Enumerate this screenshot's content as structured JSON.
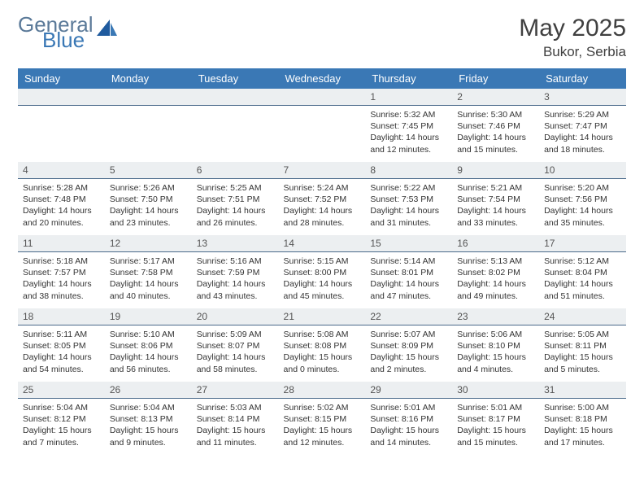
{
  "logo": {
    "general": "General",
    "blue": "Blue"
  },
  "title": {
    "month": "May 2025",
    "location": "Bukor, Serbia"
  },
  "colors": {
    "header_bg": "#3a78b5",
    "header_fg": "#ffffff",
    "daynum_bg": "#eceff1",
    "daynum_border": "#4a6a8a",
    "text": "#333333",
    "logo_general": "#5b7a99",
    "logo_blue": "#3a78b5"
  },
  "weekdays": [
    "Sunday",
    "Monday",
    "Tuesday",
    "Wednesday",
    "Thursday",
    "Friday",
    "Saturday"
  ],
  "weeks": [
    [
      null,
      null,
      null,
      null,
      {
        "n": "1",
        "sr": "5:32 AM",
        "ss": "7:45 PM",
        "dh": "14",
        "dm": "12"
      },
      {
        "n": "2",
        "sr": "5:30 AM",
        "ss": "7:46 PM",
        "dh": "14",
        "dm": "15"
      },
      {
        "n": "3",
        "sr": "5:29 AM",
        "ss": "7:47 PM",
        "dh": "14",
        "dm": "18"
      }
    ],
    [
      {
        "n": "4",
        "sr": "5:28 AM",
        "ss": "7:48 PM",
        "dh": "14",
        "dm": "20"
      },
      {
        "n": "5",
        "sr": "5:26 AM",
        "ss": "7:50 PM",
        "dh": "14",
        "dm": "23"
      },
      {
        "n": "6",
        "sr": "5:25 AM",
        "ss": "7:51 PM",
        "dh": "14",
        "dm": "26"
      },
      {
        "n": "7",
        "sr": "5:24 AM",
        "ss": "7:52 PM",
        "dh": "14",
        "dm": "28"
      },
      {
        "n": "8",
        "sr": "5:22 AM",
        "ss": "7:53 PM",
        "dh": "14",
        "dm": "31"
      },
      {
        "n": "9",
        "sr": "5:21 AM",
        "ss": "7:54 PM",
        "dh": "14",
        "dm": "33"
      },
      {
        "n": "10",
        "sr": "5:20 AM",
        "ss": "7:56 PM",
        "dh": "14",
        "dm": "35"
      }
    ],
    [
      {
        "n": "11",
        "sr": "5:18 AM",
        "ss": "7:57 PM",
        "dh": "14",
        "dm": "38"
      },
      {
        "n": "12",
        "sr": "5:17 AM",
        "ss": "7:58 PM",
        "dh": "14",
        "dm": "40"
      },
      {
        "n": "13",
        "sr": "5:16 AM",
        "ss": "7:59 PM",
        "dh": "14",
        "dm": "43"
      },
      {
        "n": "14",
        "sr": "5:15 AM",
        "ss": "8:00 PM",
        "dh": "14",
        "dm": "45"
      },
      {
        "n": "15",
        "sr": "5:14 AM",
        "ss": "8:01 PM",
        "dh": "14",
        "dm": "47"
      },
      {
        "n": "16",
        "sr": "5:13 AM",
        "ss": "8:02 PM",
        "dh": "14",
        "dm": "49"
      },
      {
        "n": "17",
        "sr": "5:12 AM",
        "ss": "8:04 PM",
        "dh": "14",
        "dm": "51"
      }
    ],
    [
      {
        "n": "18",
        "sr": "5:11 AM",
        "ss": "8:05 PM",
        "dh": "14",
        "dm": "54"
      },
      {
        "n": "19",
        "sr": "5:10 AM",
        "ss": "8:06 PM",
        "dh": "14",
        "dm": "56"
      },
      {
        "n": "20",
        "sr": "5:09 AM",
        "ss": "8:07 PM",
        "dh": "14",
        "dm": "58"
      },
      {
        "n": "21",
        "sr": "5:08 AM",
        "ss": "8:08 PM",
        "dh": "15",
        "dm": "0"
      },
      {
        "n": "22",
        "sr": "5:07 AM",
        "ss": "8:09 PM",
        "dh": "15",
        "dm": "2"
      },
      {
        "n": "23",
        "sr": "5:06 AM",
        "ss": "8:10 PM",
        "dh": "15",
        "dm": "4"
      },
      {
        "n": "24",
        "sr": "5:05 AM",
        "ss": "8:11 PM",
        "dh": "15",
        "dm": "5"
      }
    ],
    [
      {
        "n": "25",
        "sr": "5:04 AM",
        "ss": "8:12 PM",
        "dh": "15",
        "dm": "7"
      },
      {
        "n": "26",
        "sr": "5:04 AM",
        "ss": "8:13 PM",
        "dh": "15",
        "dm": "9"
      },
      {
        "n": "27",
        "sr": "5:03 AM",
        "ss": "8:14 PM",
        "dh": "15",
        "dm": "11"
      },
      {
        "n": "28",
        "sr": "5:02 AM",
        "ss": "8:15 PM",
        "dh": "15",
        "dm": "12"
      },
      {
        "n": "29",
        "sr": "5:01 AM",
        "ss": "8:16 PM",
        "dh": "15",
        "dm": "14"
      },
      {
        "n": "30",
        "sr": "5:01 AM",
        "ss": "8:17 PM",
        "dh": "15",
        "dm": "15"
      },
      {
        "n": "31",
        "sr": "5:00 AM",
        "ss": "8:18 PM",
        "dh": "15",
        "dm": "17"
      }
    ]
  ],
  "labels": {
    "sunrise": "Sunrise:",
    "sunset": "Sunset:",
    "daylight": "Daylight:",
    "hours": "hours",
    "and": "and",
    "minutes": "minutes."
  }
}
